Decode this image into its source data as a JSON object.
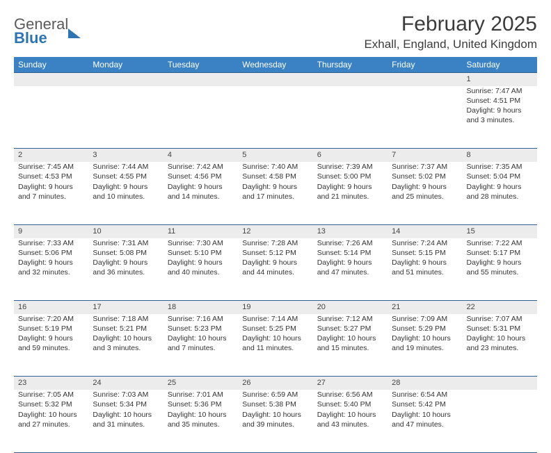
{
  "brand": {
    "line1": "General",
    "line2": "Blue"
  },
  "title": "February 2025",
  "location": "Exhall, England, United Kingdom",
  "colors": {
    "header_bg": "#3a82c4",
    "header_text": "#ffffff",
    "rule": "#2d5f90",
    "daynum_bg": "#ececec",
    "brand_blue": "#2d74b5",
    "body_text": "#333333"
  },
  "day_headers": [
    "Sunday",
    "Monday",
    "Tuesday",
    "Wednesday",
    "Thursday",
    "Friday",
    "Saturday"
  ],
  "weeks": [
    [
      null,
      null,
      null,
      null,
      null,
      null,
      {
        "n": "1",
        "sr": "Sunrise: 7:47 AM",
        "ss": "Sunset: 4:51 PM",
        "d1": "Daylight: 9 hours",
        "d2": "and 3 minutes."
      }
    ],
    [
      {
        "n": "2",
        "sr": "Sunrise: 7:45 AM",
        "ss": "Sunset: 4:53 PM",
        "d1": "Daylight: 9 hours",
        "d2": "and 7 minutes."
      },
      {
        "n": "3",
        "sr": "Sunrise: 7:44 AM",
        "ss": "Sunset: 4:55 PM",
        "d1": "Daylight: 9 hours",
        "d2": "and 10 minutes."
      },
      {
        "n": "4",
        "sr": "Sunrise: 7:42 AM",
        "ss": "Sunset: 4:56 PM",
        "d1": "Daylight: 9 hours",
        "d2": "and 14 minutes."
      },
      {
        "n": "5",
        "sr": "Sunrise: 7:40 AM",
        "ss": "Sunset: 4:58 PM",
        "d1": "Daylight: 9 hours",
        "d2": "and 17 minutes."
      },
      {
        "n": "6",
        "sr": "Sunrise: 7:39 AM",
        "ss": "Sunset: 5:00 PM",
        "d1": "Daylight: 9 hours",
        "d2": "and 21 minutes."
      },
      {
        "n": "7",
        "sr": "Sunrise: 7:37 AM",
        "ss": "Sunset: 5:02 PM",
        "d1": "Daylight: 9 hours",
        "d2": "and 25 minutes."
      },
      {
        "n": "8",
        "sr": "Sunrise: 7:35 AM",
        "ss": "Sunset: 5:04 PM",
        "d1": "Daylight: 9 hours",
        "d2": "and 28 minutes."
      }
    ],
    [
      {
        "n": "9",
        "sr": "Sunrise: 7:33 AM",
        "ss": "Sunset: 5:06 PM",
        "d1": "Daylight: 9 hours",
        "d2": "and 32 minutes."
      },
      {
        "n": "10",
        "sr": "Sunrise: 7:31 AM",
        "ss": "Sunset: 5:08 PM",
        "d1": "Daylight: 9 hours",
        "d2": "and 36 minutes."
      },
      {
        "n": "11",
        "sr": "Sunrise: 7:30 AM",
        "ss": "Sunset: 5:10 PM",
        "d1": "Daylight: 9 hours",
        "d2": "and 40 minutes."
      },
      {
        "n": "12",
        "sr": "Sunrise: 7:28 AM",
        "ss": "Sunset: 5:12 PM",
        "d1": "Daylight: 9 hours",
        "d2": "and 44 minutes."
      },
      {
        "n": "13",
        "sr": "Sunrise: 7:26 AM",
        "ss": "Sunset: 5:14 PM",
        "d1": "Daylight: 9 hours",
        "d2": "and 47 minutes."
      },
      {
        "n": "14",
        "sr": "Sunrise: 7:24 AM",
        "ss": "Sunset: 5:15 PM",
        "d1": "Daylight: 9 hours",
        "d2": "and 51 minutes."
      },
      {
        "n": "15",
        "sr": "Sunrise: 7:22 AM",
        "ss": "Sunset: 5:17 PM",
        "d1": "Daylight: 9 hours",
        "d2": "and 55 minutes."
      }
    ],
    [
      {
        "n": "16",
        "sr": "Sunrise: 7:20 AM",
        "ss": "Sunset: 5:19 PM",
        "d1": "Daylight: 9 hours",
        "d2": "and 59 minutes."
      },
      {
        "n": "17",
        "sr": "Sunrise: 7:18 AM",
        "ss": "Sunset: 5:21 PM",
        "d1": "Daylight: 10 hours",
        "d2": "and 3 minutes."
      },
      {
        "n": "18",
        "sr": "Sunrise: 7:16 AM",
        "ss": "Sunset: 5:23 PM",
        "d1": "Daylight: 10 hours",
        "d2": "and 7 minutes."
      },
      {
        "n": "19",
        "sr": "Sunrise: 7:14 AM",
        "ss": "Sunset: 5:25 PM",
        "d1": "Daylight: 10 hours",
        "d2": "and 11 minutes."
      },
      {
        "n": "20",
        "sr": "Sunrise: 7:12 AM",
        "ss": "Sunset: 5:27 PM",
        "d1": "Daylight: 10 hours",
        "d2": "and 15 minutes."
      },
      {
        "n": "21",
        "sr": "Sunrise: 7:09 AM",
        "ss": "Sunset: 5:29 PM",
        "d1": "Daylight: 10 hours",
        "d2": "and 19 minutes."
      },
      {
        "n": "22",
        "sr": "Sunrise: 7:07 AM",
        "ss": "Sunset: 5:31 PM",
        "d1": "Daylight: 10 hours",
        "d2": "and 23 minutes."
      }
    ],
    [
      {
        "n": "23",
        "sr": "Sunrise: 7:05 AM",
        "ss": "Sunset: 5:32 PM",
        "d1": "Daylight: 10 hours",
        "d2": "and 27 minutes."
      },
      {
        "n": "24",
        "sr": "Sunrise: 7:03 AM",
        "ss": "Sunset: 5:34 PM",
        "d1": "Daylight: 10 hours",
        "d2": "and 31 minutes."
      },
      {
        "n": "25",
        "sr": "Sunrise: 7:01 AM",
        "ss": "Sunset: 5:36 PM",
        "d1": "Daylight: 10 hours",
        "d2": "and 35 minutes."
      },
      {
        "n": "26",
        "sr": "Sunrise: 6:59 AM",
        "ss": "Sunset: 5:38 PM",
        "d1": "Daylight: 10 hours",
        "d2": "and 39 minutes."
      },
      {
        "n": "27",
        "sr": "Sunrise: 6:56 AM",
        "ss": "Sunset: 5:40 PM",
        "d1": "Daylight: 10 hours",
        "d2": "and 43 minutes."
      },
      {
        "n": "28",
        "sr": "Sunrise: 6:54 AM",
        "ss": "Sunset: 5:42 PM",
        "d1": "Daylight: 10 hours",
        "d2": "and 47 minutes."
      },
      null
    ]
  ]
}
